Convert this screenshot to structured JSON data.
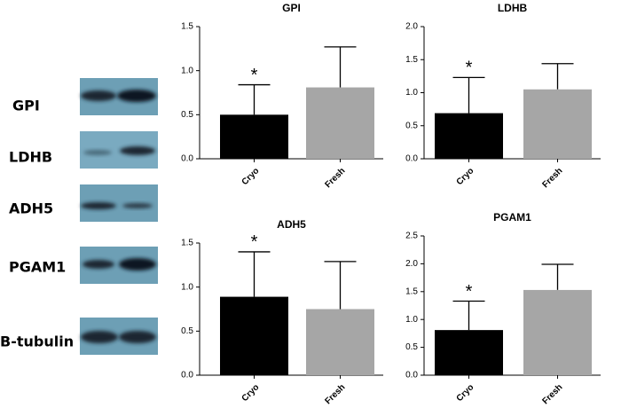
{
  "blot_labels": [
    "GPI",
    "LDHB",
    "ADH5",
    "PGAM1",
    "B-tubulin"
  ],
  "chart_data": [
    {
      "type": "bar",
      "title": "GPI",
      "categories": [
        "Cryo",
        "Fresh"
      ],
      "values": [
        0.5,
        0.81
      ],
      "errors": [
        0.34,
        0.46
      ],
      "colors": [
        "#000000",
        "#a6a6a6"
      ],
      "annotation": "*",
      "ylim": [
        0,
        1.5
      ],
      "yticks": [
        {
          "value": 0,
          "label": "0.0"
        },
        0.5,
        {
          "value": 1,
          "label": "1.0"
        },
        1.5
      ]
    },
    {
      "type": "bar",
      "title": "LDHB",
      "categories": [
        "Cryo",
        "Fresh"
      ],
      "values": [
        0.69,
        1.05
      ],
      "errors": [
        0.54,
        0.39
      ],
      "colors": [
        "#000000",
        "#a6a6a6"
      ],
      "annotation": "*",
      "ylim": [
        0,
        2
      ],
      "yticks": [
        {
          "value": 0,
          "label": "0.0"
        },
        0.5,
        {
          "value": 1,
          "label": "1.0"
        },
        1.5,
        {
          "value": 2,
          "label": "2.0"
        }
      ]
    },
    {
      "type": "bar",
      "title": "ADH5",
      "categories": [
        "Cryo",
        "Fresh"
      ],
      "values": [
        0.89,
        0.75
      ],
      "errors": [
        0.51,
        0.54
      ],
      "colors": [
        "#000000",
        "#a6a6a6"
      ],
      "annotation": "*",
      "ylim": [
        0,
        1.5
      ],
      "yticks": [
        {
          "value": 0,
          "label": "0.0"
        },
        0.5,
        {
          "value": 1,
          "label": "1.0"
        },
        1.5
      ]
    },
    {
      "type": "bar",
      "title": "PGAM1",
      "categories": [
        "Cryo",
        "Fresh"
      ],
      "values": [
        0.81,
        1.53
      ],
      "errors": [
        0.52,
        0.46
      ],
      "colors": [
        "#000000",
        "#a6a6a6"
      ],
      "annotation": "*",
      "ylim": [
        0,
        2.5
      ],
      "yticks": [
        {
          "value": 0,
          "label": "0.0"
        },
        0.5,
        {
          "value": 1,
          "label": "1.0"
        },
        1.5,
        {
          "value": 2,
          "label": "2.0"
        },
        2.5
      ]
    }
  ]
}
